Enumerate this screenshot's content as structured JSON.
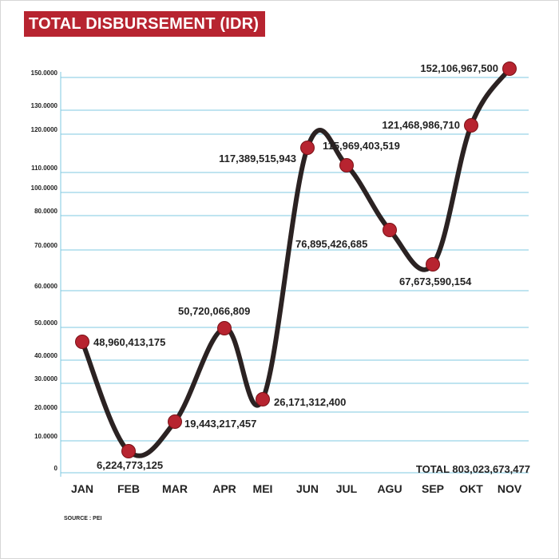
{
  "chart_data": {
    "type": "line",
    "title": "TOTAL DISBURSEMENT (IDR)",
    "categories": [
      "JAN",
      "FEB",
      "MAR",
      "APR",
      "MEI",
      "JUN",
      "JUL",
      "AGU",
      "SEP",
      "OKT",
      "NOV"
    ],
    "y_tick_labels": [
      "0",
      "10.0000",
      "20.0000",
      "30.0000",
      "40.0000",
      "50.0000",
      "60.0000",
      "70.0000",
      "80.0000",
      "100.0000",
      "110.0000",
      "120.0000",
      "130.0000",
      "150.0000"
    ],
    "series": [
      {
        "name": "Disbursement",
        "values": [
          48960413175,
          6224773125,
          19443217457,
          50720066809,
          26171312400,
          117389515943,
          115969403519,
          76895426685,
          67673590154,
          121468986710,
          152106967500
        ],
        "labels": [
          "48,960,413,175",
          "6,224,773,125",
          "19,443,217,457",
          "50,720,066,809",
          "26,171,312,400",
          "117,389,515,943",
          "115,969,403,519",
          "76,895,426,685",
          "67,673,590,154",
          "121,468,986,710",
          "152,106,967,500"
        ]
      }
    ],
    "total_label": "TOTAL 803,023,673,477",
    "xlabel": "",
    "ylabel": "",
    "grid": true,
    "colors": {
      "line": "#2b2222",
      "marker": "#b72430",
      "grid": "#7fc8e0",
      "title_bg": "#b72430"
    }
  },
  "footer": {
    "source": "SOURCE : PEI"
  }
}
